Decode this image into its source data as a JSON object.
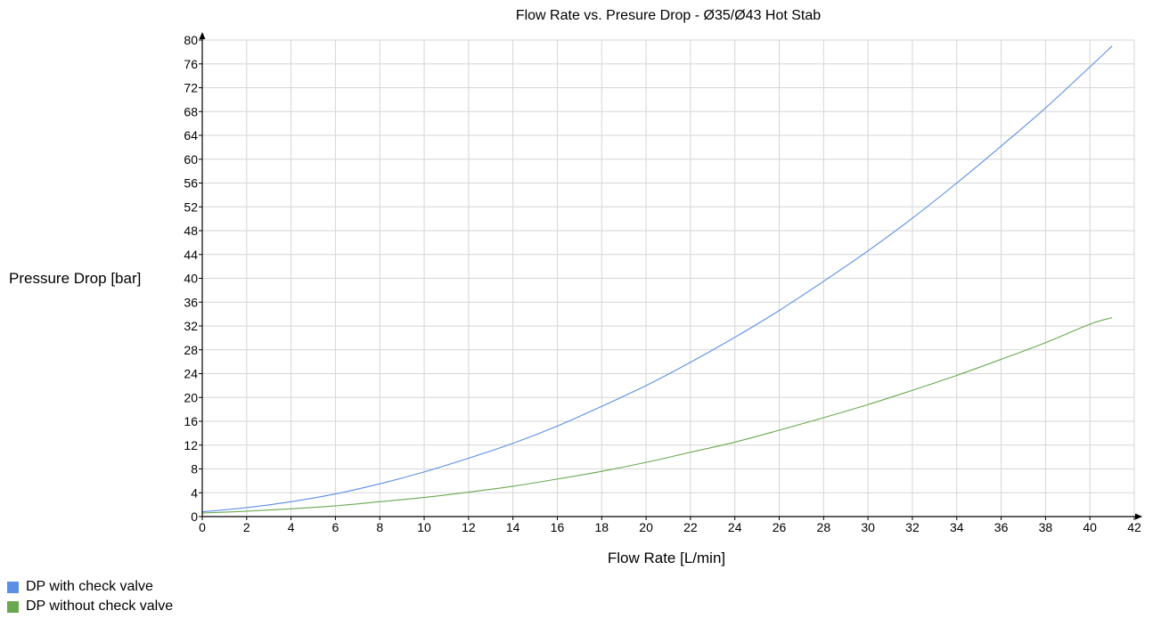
{
  "chart_data": {
    "type": "line",
    "title": "Flow Rate vs. Presure Drop - Ø35/Ø43 Hot Stab",
    "xlabel": "Flow Rate [L/min]",
    "ylabel": "Pressure Drop [bar]",
    "xlim": [
      0,
      42
    ],
    "ylim": [
      0,
      80
    ],
    "x_ticks": [
      0,
      2,
      4,
      6,
      8,
      10,
      12,
      14,
      16,
      18,
      20,
      22,
      24,
      26,
      28,
      30,
      32,
      34,
      36,
      38,
      40,
      42
    ],
    "y_ticks": [
      0,
      4,
      8,
      12,
      16,
      20,
      24,
      28,
      32,
      36,
      40,
      44,
      48,
      52,
      56,
      60,
      64,
      68,
      72,
      76,
      80
    ],
    "grid": true,
    "legend_position": "bottom-left",
    "x": [
      0,
      2,
      4,
      6,
      8,
      10,
      12,
      14,
      16,
      18,
      20,
      22,
      24,
      26,
      28,
      30,
      32,
      34,
      36,
      38,
      40,
      41
    ],
    "series": [
      {
        "name": "DP with check valve",
        "color": "#5b8fe4",
        "values": [
          0.8,
          1.5,
          2.5,
          3.8,
          5.5,
          7.5,
          9.8,
          12.3,
          15.2,
          18.5,
          22.0,
          25.9,
          30.1,
          34.6,
          39.5,
          44.6,
          50.1,
          56.0,
          62.2,
          68.6,
          75.5,
          79.0
        ]
      },
      {
        "name": "DP without check valve",
        "color": "#6aa84f",
        "values": [
          0.6,
          0.9,
          1.3,
          1.8,
          2.5,
          3.2,
          4.1,
          5.1,
          6.3,
          7.6,
          9.1,
          10.8,
          12.5,
          14.5,
          16.6,
          18.8,
          21.2,
          23.7,
          26.4,
          29.2,
          32.3,
          33.4
        ]
      }
    ]
  },
  "colors": {
    "grid": "#d6d6d6",
    "axis": "#000000",
    "plot_border": "#cccccc"
  }
}
